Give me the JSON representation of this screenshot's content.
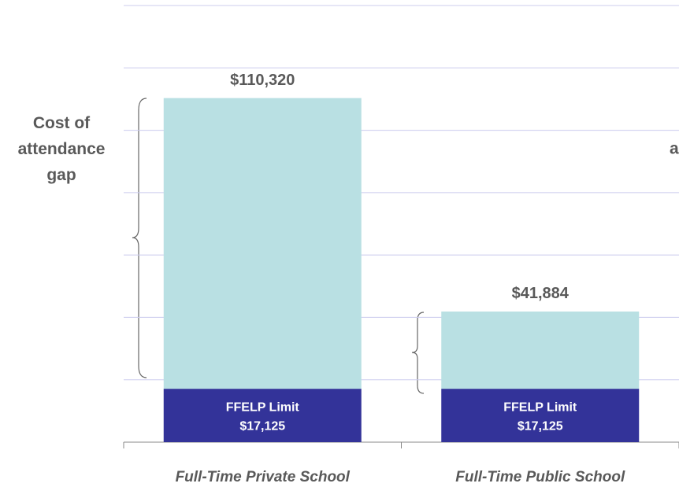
{
  "chart_data": {
    "type": "bar",
    "stacked": true,
    "categories": [
      "Full-Time Private School",
      "Full-Time Public School"
    ],
    "series": [
      {
        "name": "FFELP Limit",
        "color": "#333399",
        "values": [
          17125,
          17125
        ],
        "value_labels": [
          "$17,125",
          "$17,125"
        ]
      },
      {
        "color": "#b9e0e3",
        "values": [
          93195,
          24759
        ]
      }
    ],
    "totals": [
      110320,
      41884
    ],
    "total_labels": [
      "$110,320",
      "$41,884"
    ],
    "annotations": [
      "Cost of attendance gap",
      "a"
    ],
    "ylim": [
      0,
      140000
    ],
    "yticks": [
      0,
      20000,
      40000,
      60000,
      80000,
      100000,
      120000,
      140000
    ],
    "grid": true
  }
}
